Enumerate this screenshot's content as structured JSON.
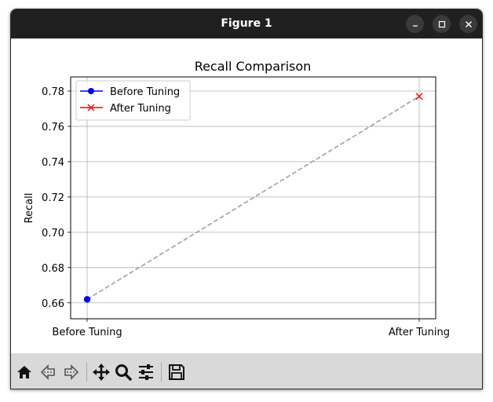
{
  "window": {
    "title": "Figure 1"
  },
  "toolbar": {
    "tools": [
      {
        "name": "home-icon"
      },
      {
        "name": "back-arrow-icon"
      },
      {
        "name": "forward-arrow-icon"
      },
      {
        "name": "pan-icon"
      },
      {
        "name": "zoom-icon"
      },
      {
        "name": "configure-subplots-icon"
      },
      {
        "name": "save-icon"
      }
    ]
  },
  "chart_data": {
    "type": "line",
    "title": "Recall Comparison",
    "xlabel": "",
    "ylabel": "Recall",
    "categories": [
      "Before Tuning",
      "After Tuning"
    ],
    "ylim": [
      0.651,
      0.788
    ],
    "yticks": [
      0.66,
      0.68,
      0.7,
      0.72,
      0.74,
      0.76,
      0.78
    ],
    "ytick_labels": [
      "0.66",
      "0.68",
      "0.70",
      "0.72",
      "0.74",
      "0.76",
      "0.78"
    ],
    "grid": true,
    "legend_position": "upper-left",
    "series": [
      {
        "name": "Before Tuning",
        "x": [
          "Before Tuning"
        ],
        "values": [
          0.662
        ],
        "color": "#0000ff",
        "marker": "circle"
      },
      {
        "name": "After Tuning",
        "x": [
          "After Tuning"
        ],
        "values": [
          0.777
        ],
        "color": "#ff0000",
        "marker": "x"
      }
    ],
    "connector": {
      "values": [
        0.662,
        0.777
      ],
      "color": "#a0a0a0",
      "style": "dashed"
    }
  }
}
